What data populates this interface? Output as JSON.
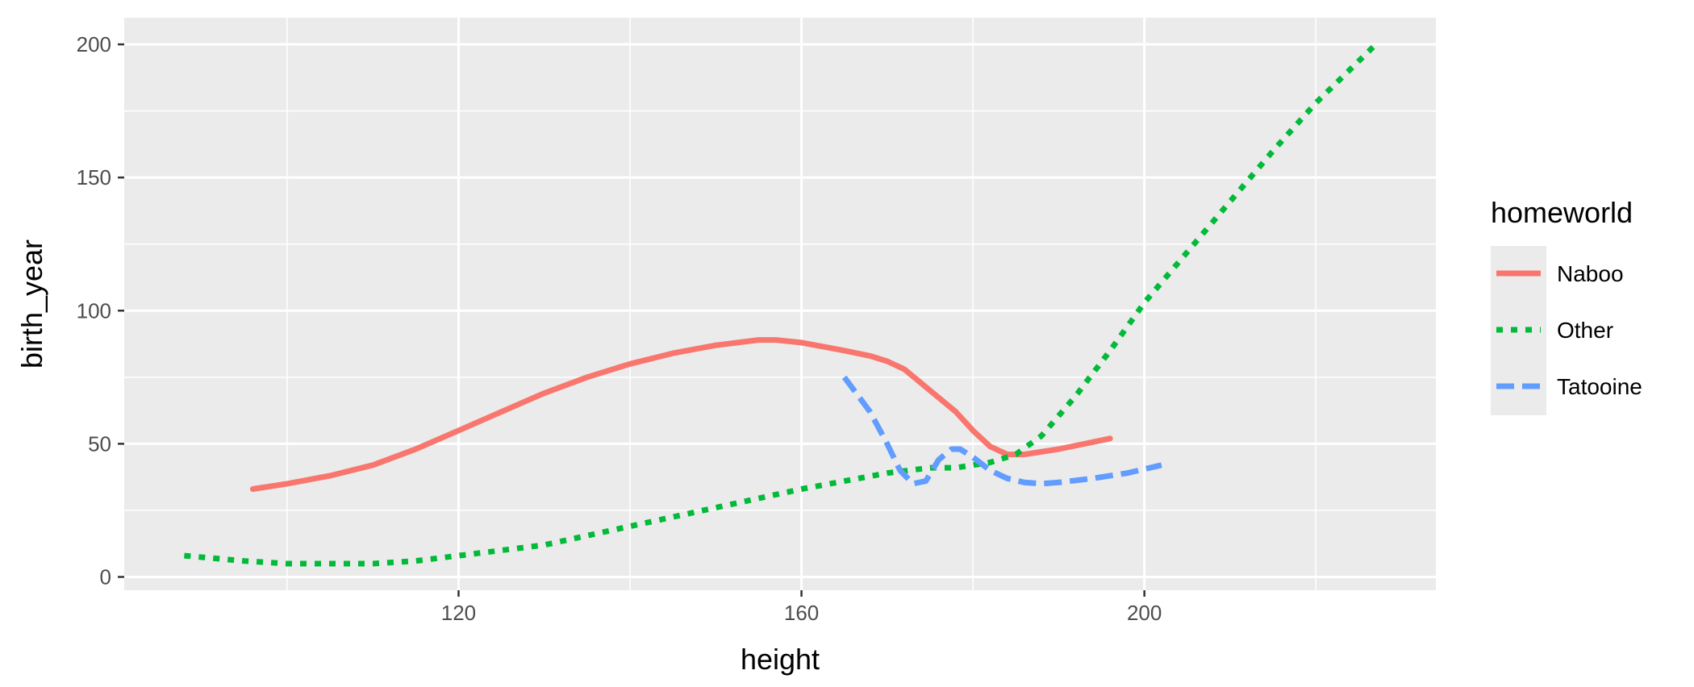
{
  "chart_data": {
    "type": "line",
    "xlabel": "height",
    "ylabel": "birth_year",
    "xlim": [
      81,
      234
    ],
    "ylim": [
      -5,
      210
    ],
    "x_ticks": [
      120,
      160,
      200
    ],
    "x_ticks_minor": [
      100,
      140,
      180,
      220
    ],
    "y_ticks": [
      0,
      50,
      100,
      150,
      200
    ],
    "y_ticks_minor": [
      25,
      75,
      125,
      175
    ],
    "grid": true,
    "legend": {
      "title": "homeworld",
      "position": "right"
    },
    "series": [
      {
        "name": "Naboo",
        "color": "#F8766D",
        "linetype": "solid",
        "x": [
          96,
          100,
          105,
          110,
          115,
          120,
          125,
          130,
          135,
          140,
          145,
          150,
          155,
          157,
          160,
          165,
          168,
          170,
          172,
          175,
          178,
          180,
          182,
          184,
          186,
          190,
          193,
          196
        ],
        "y": [
          33,
          35,
          38,
          42,
          48,
          55,
          62,
          69,
          75,
          80,
          84,
          87,
          89,
          89,
          88,
          85,
          83,
          81,
          78,
          70,
          62,
          55,
          49,
          46,
          46,
          48,
          50,
          52
        ]
      },
      {
        "name": "Other",
        "color": "#00BA38",
        "linetype": "dotted",
        "x": [
          88,
          95,
          100,
          105,
          110,
          115,
          120,
          130,
          140,
          150,
          160,
          165,
          170,
          175,
          178,
          182,
          185,
          188,
          192,
          196,
          200,
          205,
          210,
          215,
          220,
          227
        ],
        "y": [
          8,
          6,
          5,
          5,
          5,
          6,
          8,
          12,
          19,
          26,
          33,
          36,
          39,
          41,
          41,
          43,
          46,
          53,
          68,
          85,
          103,
          122,
          141,
          160,
          178,
          200
        ]
      },
      {
        "name": "Tatooine",
        "color": "#619CFF",
        "linetype": "dashed",
        "x": [
          165,
          168,
          170,
          171.5,
          173,
          174.5,
          176,
          177.5,
          178.5,
          180,
          182,
          184,
          186,
          188,
          190,
          194,
          198,
          202
        ],
        "y": [
          75,
          62,
          50,
          40,
          35,
          36,
          44,
          48,
          48,
          45,
          40,
          37,
          35.5,
          35,
          35.5,
          37,
          39,
          42
        ]
      }
    ]
  }
}
